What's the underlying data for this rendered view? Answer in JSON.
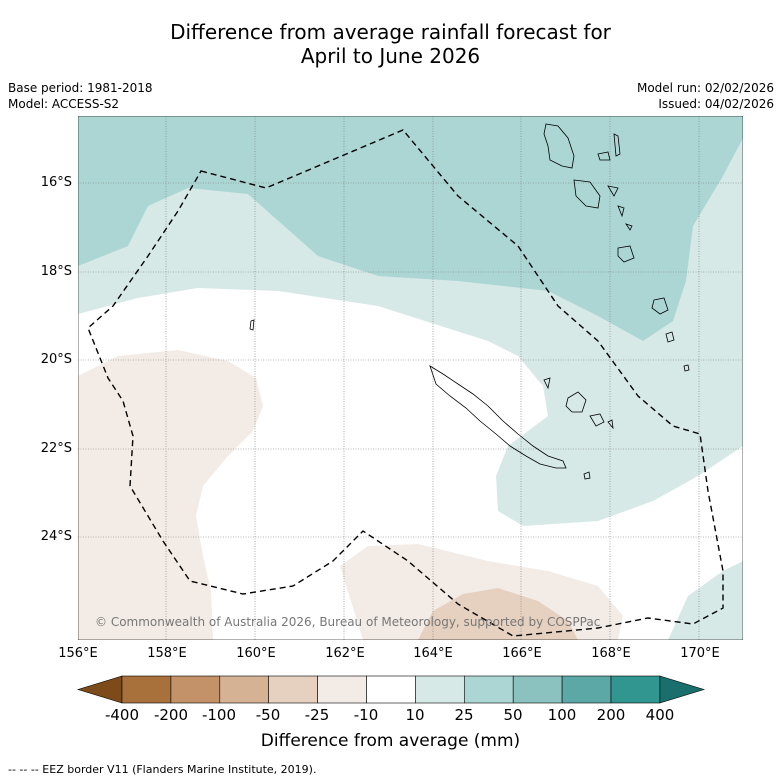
{
  "title_line1": "Difference from average rainfall forecast for",
  "title_line2": "April to June 2026",
  "meta": {
    "base_period": "Base period: 1981-2018",
    "model": "Model: ACCESS-S2",
    "model_run": "Model run: 02/02/2026",
    "issued": "Issued: 04/02/2026"
  },
  "lat_ticks": [
    "16°S",
    "18°S",
    "20°S",
    "22°S",
    "24°S"
  ],
  "lon_ticks": [
    "156°E",
    "158°E",
    "160°E",
    "162°E",
    "164°E",
    "166°E",
    "168°E",
    "170°E"
  ],
  "colorbar": {
    "labels": [
      "-400",
      "-200",
      "-100",
      "-50",
      "-25",
      "-10",
      "10",
      "25",
      "50",
      "100",
      "200",
      "400"
    ],
    "colors": [
      "#7d4a1a",
      "#a8713c",
      "#c49268",
      "#d6b294",
      "#e6d1c0",
      "#f3ece6",
      "#ffffff",
      "#d6e9e7",
      "#acd6d4",
      "#8bc1bf",
      "#5ba8a6",
      "#319590",
      "#1a6e6b"
    ],
    "title": "Difference from average (mm)"
  },
  "footer": "--  --  -- EEZ border V11 (Flanders Marine Institute, 2019).",
  "copyright": "© Commonwealth of Australia 2026, Bureau of Meteorology, supported by COSPPac"
}
